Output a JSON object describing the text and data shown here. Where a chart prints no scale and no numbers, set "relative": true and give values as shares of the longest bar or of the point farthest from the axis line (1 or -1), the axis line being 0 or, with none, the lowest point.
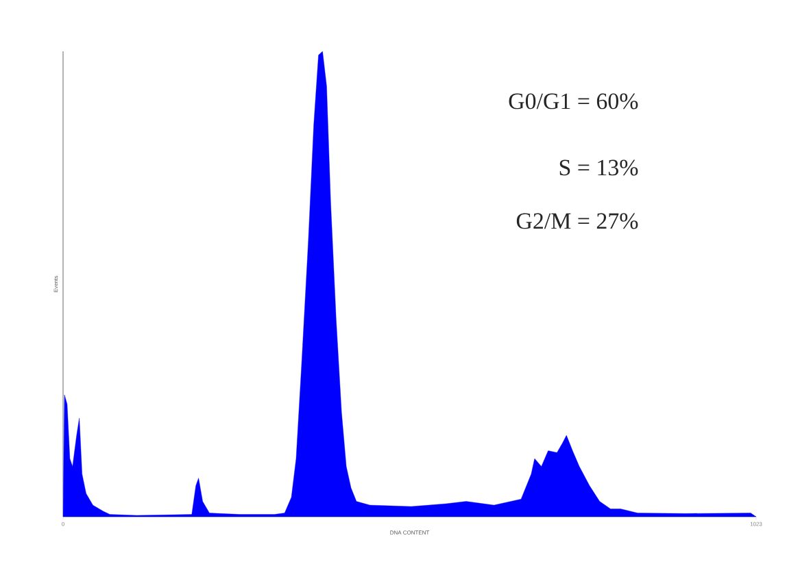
{
  "chart_data": {
    "type": "area",
    "relative": true,
    "xlabel": "DNA CONTENT",
    "ylabel": "Events",
    "xlim": [
      0,
      1023
    ],
    "xticks": [
      0,
      1023
    ],
    "grid": false,
    "annotations": [
      "G0/G1 = 60%",
      "S = 13%",
      "G2/M = 27%"
    ],
    "series": [
      {
        "color": "#0000ff",
        "x": [
          0,
          2,
          6,
          10,
          14,
          20,
          24,
          28,
          34,
          44,
          59,
          69,
          109,
          190,
          196,
          200,
          206,
          216,
          261,
          312,
          327,
          337,
          344,
          352,
          362,
          370,
          377,
          383,
          389,
          395,
          403,
          411,
          418,
          425,
          433,
          453,
          514,
          565,
          595,
          636,
          676,
          691,
          696,
          706,
          716,
          729,
          737,
          743,
          752,
          762,
          777,
          792,
          808,
          823,
          848,
          919,
          1015,
          1023
        ],
        "values": [
          0,
          0.262,
          0.242,
          0.125,
          0.108,
          0.175,
          0.212,
          0.092,
          0.05,
          0.025,
          0.012,
          0.005,
          0.003,
          0.005,
          0.067,
          0.083,
          0.033,
          0.008,
          0.005,
          0.005,
          0.008,
          0.042,
          0.125,
          0.325,
          0.592,
          0.842,
          0.992,
          1,
          0.925,
          0.675,
          0.425,
          0.225,
          0.108,
          0.062,
          0.033,
          0.025,
          0.022,
          0.028,
          0.033,
          0.025,
          0.038,
          0.092,
          0.125,
          0.108,
          0.142,
          0.138,
          0.158,
          0.175,
          0.142,
          0.108,
          0.067,
          0.033,
          0.017,
          0.017,
          0.008,
          0.007,
          0.008,
          0
        ]
      }
    ]
  }
}
